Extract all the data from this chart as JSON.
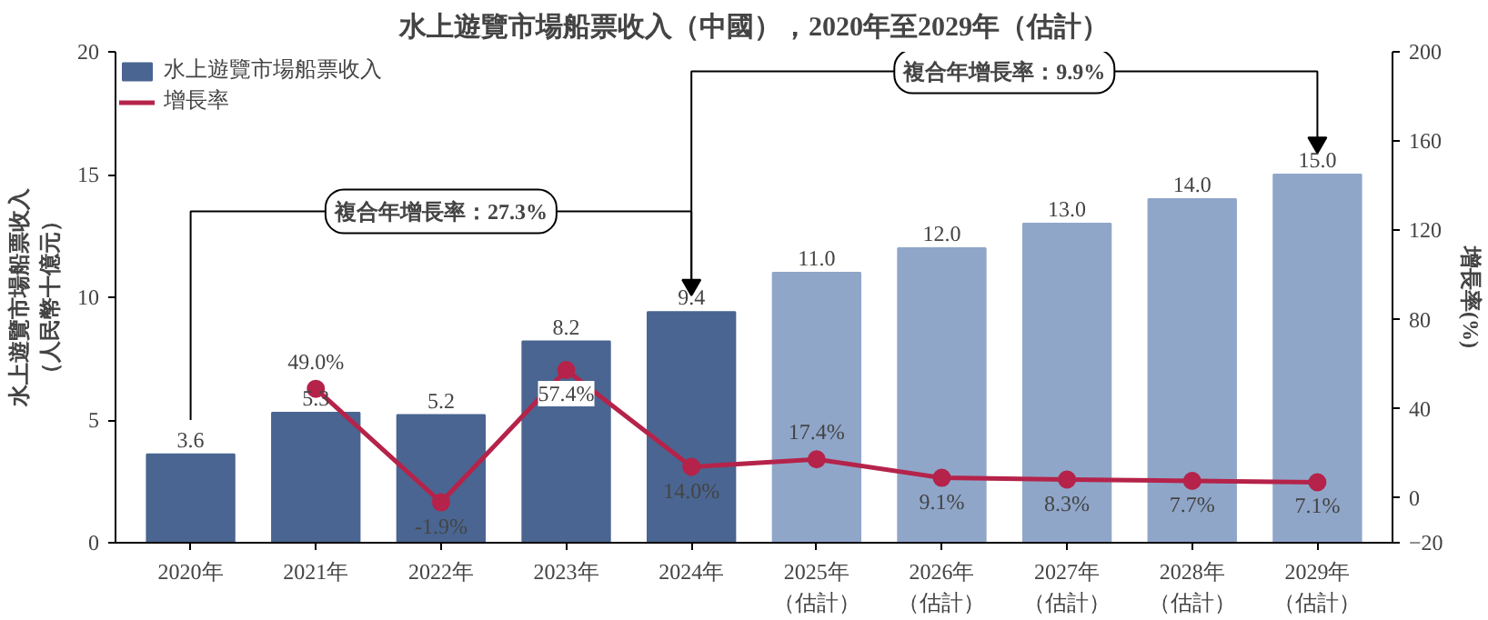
{
  "chart_data": {
    "type": "bar",
    "title": "水上遊覽市場船票收入（中國），2020年至2029年（估計）",
    "categories": [
      "2020年",
      "2021年",
      "2022年",
      "2023年",
      "2024年",
      "2025年（估計）",
      "2026年（估計）",
      "2027年（估計）",
      "2028年（估計）",
      "2029年（估計）"
    ],
    "series": [
      {
        "name": "水上遊覽市場船票收入",
        "colors": [
          "#4a6591",
          "#4a6591",
          "#4a6591",
          "#4a6591",
          "#4a6591",
          "#8fa6c9",
          "#8fa6c9",
          "#8fa6c9",
          "#8fa6c9",
          "#8fa6c9"
        ],
        "values": [
          3.6,
          5.3,
          5.2,
          8.2,
          9.4,
          11.0,
          12.0,
          13.0,
          14.0,
          15.0
        ],
        "value_labels": [
          "3.6",
          "5.3",
          "5.2",
          "8.2",
          "9.4",
          "11.0",
          "12.0",
          "13.0",
          "14.0",
          "15.0"
        ]
      },
      {
        "name": "增長率",
        "type": "line",
        "axis": "y2",
        "color": "#b5234a",
        "values": [
          null,
          49.0,
          -1.9,
          57.4,
          14.0,
          17.4,
          9.1,
          8.3,
          7.7,
          7.1
        ],
        "value_labels": [
          null,
          "49.0%",
          "-1.9%",
          "57.4%",
          "14.0%",
          "17.4%",
          "9.1%",
          "8.3%",
          "7.7%",
          "7.1%"
        ]
      }
    ],
    "ylabel": "水上遊覽市場船票收入（人民幣十億元）",
    "y2label": "增長率(%)",
    "ylim": [
      0,
      20
    ],
    "yticks": [
      0,
      5,
      10,
      15,
      20
    ],
    "y2lim": [
      -20,
      200
    ],
    "y2ticks": [
      -20,
      0,
      40,
      80,
      120,
      160,
      200
    ],
    "annotations": [
      "複合年增長率：27.3%",
      "複合年增長率：9.9%"
    ],
    "marker": "circle",
    "legend": "top left",
    "grid": false
  }
}
